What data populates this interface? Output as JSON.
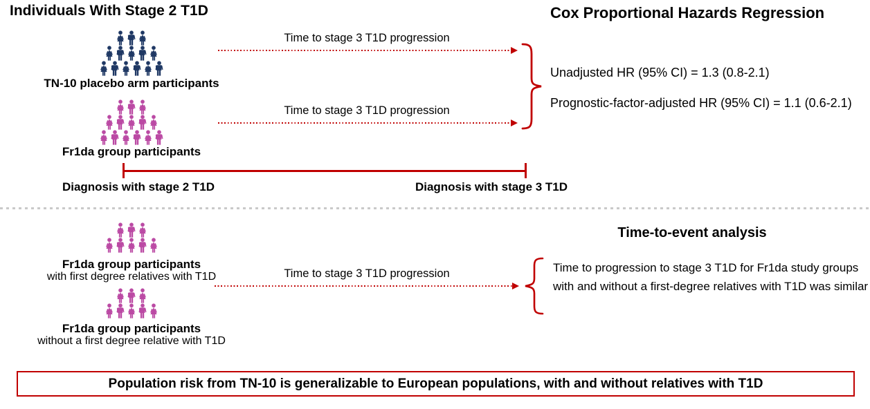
{
  "colors": {
    "navy": "#1f3864",
    "magenta": "#bb4aa4",
    "red": "#c00000",
    "divider_gray": "#c9c9c9"
  },
  "top_section": {
    "title_left": "Individuals With Stage 2 T1D",
    "title_right": "Cox Proportional Hazards Regression",
    "groups": [
      {
        "id": "tn10",
        "label": "TN-10 placebo arm participants",
        "color": "navy",
        "rows": [
          3,
          5,
          6
        ]
      },
      {
        "id": "fr1da",
        "label": "Fr1da group participants",
        "color": "magenta",
        "rows": [
          3,
          5,
          6
        ]
      }
    ],
    "arrows": [
      {
        "label": "Time to stage 3 T1D progression"
      },
      {
        "label": "Time to stage 3 T1D progression"
      }
    ],
    "results": [
      "Unadjusted HR (95% CI) = 1.3 (0.8-2.1)",
      "Prognostic-factor-adjusted HR (95% CI) = 1.1 (0.6-2.1)"
    ],
    "timeline": {
      "start_label": "Diagnosis with stage 2 T1D",
      "end_label": "Diagnosis with stage 3 T1D"
    }
  },
  "bottom_section": {
    "title": "Time-to-event analysis",
    "groups": [
      {
        "id": "fr1da-fdr",
        "label": "Fr1da group participants",
        "sublabel": "with first degree relatives with T1D",
        "color": "magenta",
        "rows": [
          3,
          5
        ]
      },
      {
        "id": "fr1da-no-fdr",
        "label": "Fr1da group participants",
        "sublabel": "without a first degree relative with T1D",
        "color": "magenta",
        "rows": [
          3,
          5
        ]
      }
    ],
    "arrow_label": "Time to stage 3 T1D progression",
    "finding": "Time to progression to stage 3 T1D for Fr1da study groups with and without a first-degree relatives with T1D was similar"
  },
  "footer": {
    "text": "Population risk from TN-10 is generalizable to European populations, with and without relatives with T1D"
  }
}
